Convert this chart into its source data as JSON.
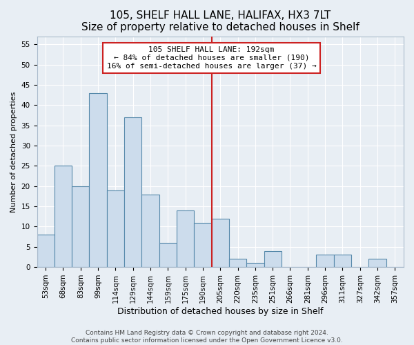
{
  "title": "105, SHELF HALL LANE, HALIFAX, HX3 7LT",
  "subtitle": "Size of property relative to detached houses in Shelf",
  "xlabel": "Distribution of detached houses by size in Shelf",
  "ylabel": "Number of detached properties",
  "bin_labels": [
    "53sqm",
    "68sqm",
    "83sqm",
    "99sqm",
    "114sqm",
    "129sqm",
    "144sqm",
    "159sqm",
    "175sqm",
    "190sqm",
    "205sqm",
    "220sqm",
    "235sqm",
    "251sqm",
    "266sqm",
    "281sqm",
    "296sqm",
    "311sqm",
    "327sqm",
    "342sqm",
    "357sqm"
  ],
  "bar_values": [
    8,
    25,
    20,
    43,
    19,
    37,
    18,
    6,
    14,
    11,
    12,
    2,
    1,
    4,
    0,
    0,
    3,
    3,
    0,
    2,
    0
  ],
  "bar_color": "#ccdcec",
  "bar_edge_color": "#5588aa",
  "vline_x": 9.5,
  "vline_color": "#cc2222",
  "annotation_title": "105 SHELF HALL LANE: 192sqm",
  "annotation_line1": "← 84% of detached houses are smaller (190)",
  "annotation_line2": "16% of semi-detached houses are larger (37) →",
  "annotation_box_color": "white",
  "annotation_box_edge": "#cc2222",
  "ylim": [
    0,
    57
  ],
  "yticks": [
    0,
    5,
    10,
    15,
    20,
    25,
    30,
    35,
    40,
    45,
    50,
    55
  ],
  "footer1": "Contains HM Land Registry data © Crown copyright and database right 2024.",
  "footer2": "Contains public sector information licensed under the Open Government Licence v3.0.",
  "background_color": "#e8eef4",
  "grid_color": "white",
  "title_fontsize": 11,
  "xlabel_fontsize": 9,
  "ylabel_fontsize": 8,
  "tick_fontsize": 7.5,
  "footer_fontsize": 6.5,
  "ann_fontsize": 8
}
